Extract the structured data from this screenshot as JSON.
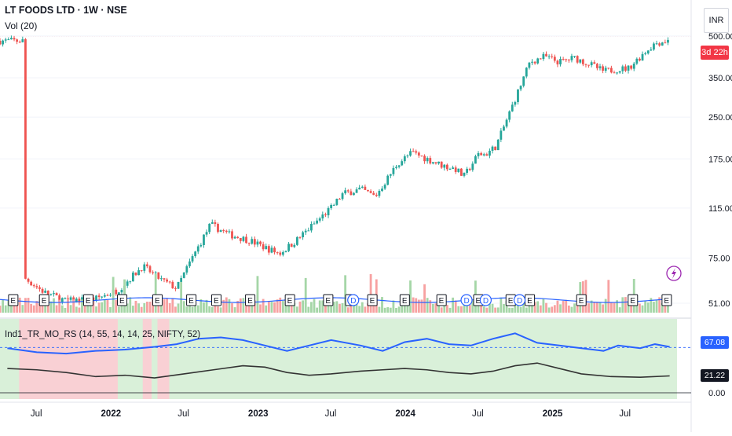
{
  "header": {
    "title": "LT FOODS LTD · 1W · NSE",
    "volume_label": "Vol (20)",
    "currency": "INR",
    "countdown": "3d 22h"
  },
  "indicator": {
    "label": "Ind1_TR_MO_RS (14, 55, 14, 14, 25, NIFTY, 52)",
    "value_a": "67.08",
    "value_b": "21.22"
  },
  "colors": {
    "up": "#26a69a",
    "down": "#ef5350",
    "vol_up": "#a5d6a7",
    "vol_down": "#f7a1a1",
    "vol_ma": "#2962ff",
    "rs_line": "#2962ff",
    "mo_line": "#333333",
    "bg_green": "#d9f0d9",
    "bg_red": "#f9d0d4",
    "countdown_bg": "#f23645"
  },
  "chart_data": {
    "type": "candlestick",
    "price_scale": "log",
    "price_ticks": [
      "500.00",
      "350.00",
      "250.00",
      "175.00",
      "115.00",
      "75.00",
      "51.00"
    ],
    "time_ticks": [
      "Jul",
      "2022",
      "Jul",
      "2023",
      "Jul",
      "2024",
      "Jul",
      "2025",
      "Jul"
    ],
    "price_path": [
      [
        2021.42,
        63
      ],
      [
        2021.55,
        56
      ],
      [
        2021.7,
        52
      ],
      [
        2021.9,
        53
      ],
      [
        2022.05,
        57
      ],
      [
        2022.22,
        70
      ],
      [
        2022.35,
        62
      ],
      [
        2022.45,
        58
      ],
      [
        2022.55,
        74
      ],
      [
        2022.68,
        100
      ],
      [
        2022.8,
        92
      ],
      [
        2022.95,
        87
      ],
      [
        2023.05,
        82
      ],
      [
        2023.15,
        78
      ],
      [
        2023.25,
        86
      ],
      [
        2023.38,
        100
      ],
      [
        2023.5,
        115
      ],
      [
        2023.58,
        130
      ],
      [
        2023.7,
        135
      ],
      [
        2023.8,
        127
      ],
      [
        2023.95,
        168
      ],
      [
        2024.05,
        185
      ],
      [
        2024.15,
        175
      ],
      [
        2024.25,
        166
      ],
      [
        2024.35,
        160
      ],
      [
        2024.4,
        150
      ],
      [
        2024.5,
        182
      ],
      [
        2024.55,
        182
      ],
      [
        2024.62,
        195
      ],
      [
        2024.7,
        250
      ],
      [
        2024.85,
        400
      ],
      [
        2024.95,
        420
      ],
      [
        2025.05,
        400
      ],
      [
        2025.15,
        415
      ],
      [
        2025.25,
        395
      ],
      [
        2025.35,
        370
      ],
      [
        2025.42,
        375
      ],
      [
        2025.52,
        380
      ],
      [
        2025.62,
        430
      ],
      [
        2025.7,
        470
      ],
      [
        2025.78,
        480
      ]
    ],
    "ind_ticks": [
      "67.08",
      "21.22",
      "0.00"
    ],
    "ind_range": [
      0,
      100
    ],
    "rs_path": [
      [
        2021.3,
        66
      ],
      [
        2021.5,
        60
      ],
      [
        2021.7,
        58
      ],
      [
        2021.9,
        62
      ],
      [
        2022.1,
        64
      ],
      [
        2022.3,
        68
      ],
      [
        2022.45,
        72
      ],
      [
        2022.6,
        80
      ],
      [
        2022.75,
        82
      ],
      [
        2022.9,
        78
      ],
      [
        2023.05,
        70
      ],
      [
        2023.2,
        62
      ],
      [
        2023.35,
        70
      ],
      [
        2023.5,
        78
      ],
      [
        2023.7,
        70
      ],
      [
        2023.85,
        62
      ],
      [
        2024.0,
        75
      ],
      [
        2024.15,
        80
      ],
      [
        2024.3,
        72
      ],
      [
        2024.45,
        70
      ],
      [
        2024.6,
        80
      ],
      [
        2024.75,
        88
      ],
      [
        2024.9,
        74
      ],
      [
        2025.05,
        70
      ],
      [
        2025.2,
        66
      ],
      [
        2025.35,
        62
      ],
      [
        2025.45,
        70
      ],
      [
        2025.6,
        66
      ],
      [
        2025.7,
        72
      ],
      [
        2025.8,
        68
      ]
    ],
    "mo_path": [
      [
        2021.3,
        36
      ],
      [
        2021.5,
        34
      ],
      [
        2021.7,
        30
      ],
      [
        2021.9,
        24
      ],
      [
        2022.1,
        26
      ],
      [
        2022.3,
        22
      ],
      [
        2022.5,
        28
      ],
      [
        2022.7,
        34
      ],
      [
        2022.9,
        40
      ],
      [
        2023.05,
        38
      ],
      [
        2023.2,
        30
      ],
      [
        2023.35,
        26
      ],
      [
        2023.5,
        28
      ],
      [
        2023.7,
        32
      ],
      [
        2023.85,
        34
      ],
      [
        2024.0,
        36
      ],
      [
        2024.15,
        34
      ],
      [
        2024.3,
        30
      ],
      [
        2024.45,
        28
      ],
      [
        2024.6,
        32
      ],
      [
        2024.75,
        40
      ],
      [
        2024.9,
        44
      ],
      [
        2025.05,
        36
      ],
      [
        2025.2,
        28
      ],
      [
        2025.4,
        24
      ],
      [
        2025.6,
        23
      ],
      [
        2025.8,
        25
      ]
    ],
    "earnings_markers": [
      2021.34,
      2021.55,
      2021.85,
      2022.08,
      2022.32,
      2022.55,
      2022.72,
      2022.95,
      2023.22,
      2023.48,
      2023.63,
      2023.78,
      2024.0,
      2024.25,
      2024.5,
      2024.72,
      2024.85,
      2025.2,
      2025.55,
      2025.78
    ],
    "dividend_markers": [
      2023.65,
      2024.42,
      2024.55,
      2024.78
    ]
  }
}
